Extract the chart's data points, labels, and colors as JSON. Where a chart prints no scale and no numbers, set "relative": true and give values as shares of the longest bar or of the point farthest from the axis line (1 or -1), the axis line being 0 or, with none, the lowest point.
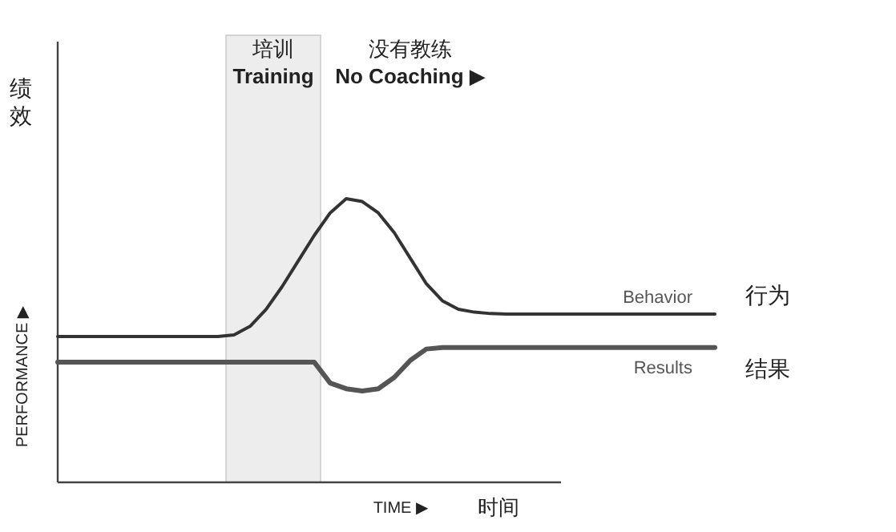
{
  "chart_data": {
    "type": "line",
    "relative": true,
    "xlabel": "TIME ▶",
    "ylabel": "PERFORMANCE ▶",
    "categories": [
      null,
      null,
      null,
      null,
      null,
      null,
      null,
      null,
      null,
      null,
      null,
      null,
      null,
      null,
      null,
      null,
      null,
      null,
      null,
      null,
      null,
      null,
      null,
      null,
      null,
      null,
      null,
      null,
      null,
      null,
      null,
      null,
      null,
      null,
      null,
      null,
      null,
      null,
      null,
      null,
      null,
      null
    ],
    "series": [
      {
        "name": "Behavior",
        "color": "#333333",
        "values": [
          0.514,
          0.514,
          0.514,
          0.514,
          0.514,
          0.514,
          0.514,
          0.514,
          0.514,
          0.514,
          0.514,
          0.52,
          0.55,
          0.61,
          0.69,
          0.78,
          0.87,
          0.95,
          1.0,
          0.99,
          0.95,
          0.88,
          0.79,
          0.7,
          0.64,
          0.61,
          0.6,
          0.595,
          0.593,
          0.593,
          0.593,
          0.593,
          0.593,
          0.593,
          0.593,
          0.593,
          0.593,
          0.593,
          0.593,
          0.593,
          0.593,
          0.593
        ]
      },
      {
        "name": "Results",
        "color": "#555555",
        "values": [
          0.424,
          0.424,
          0.424,
          0.424,
          0.424,
          0.424,
          0.424,
          0.424,
          0.424,
          0.424,
          0.424,
          0.424,
          0.424,
          0.424,
          0.424,
          0.424,
          0.424,
          0.35,
          0.33,
          0.322,
          0.33,
          0.37,
          0.43,
          0.47,
          0.475,
          0.475,
          0.475,
          0.475,
          0.475,
          0.475,
          0.475,
          0.475,
          0.475,
          0.475,
          0.475,
          0.475,
          0.475,
          0.475,
          0.475,
          0.475,
          0.475,
          0.475
        ]
      }
    ],
    "annotations": [
      "绩效",
      "时间",
      "行为",
      "结果",
      "没有教练\nNo Coaching ▶",
      "培训\nTraining"
    ],
    "line_style": "solid",
    "marker": "none"
  }
}
